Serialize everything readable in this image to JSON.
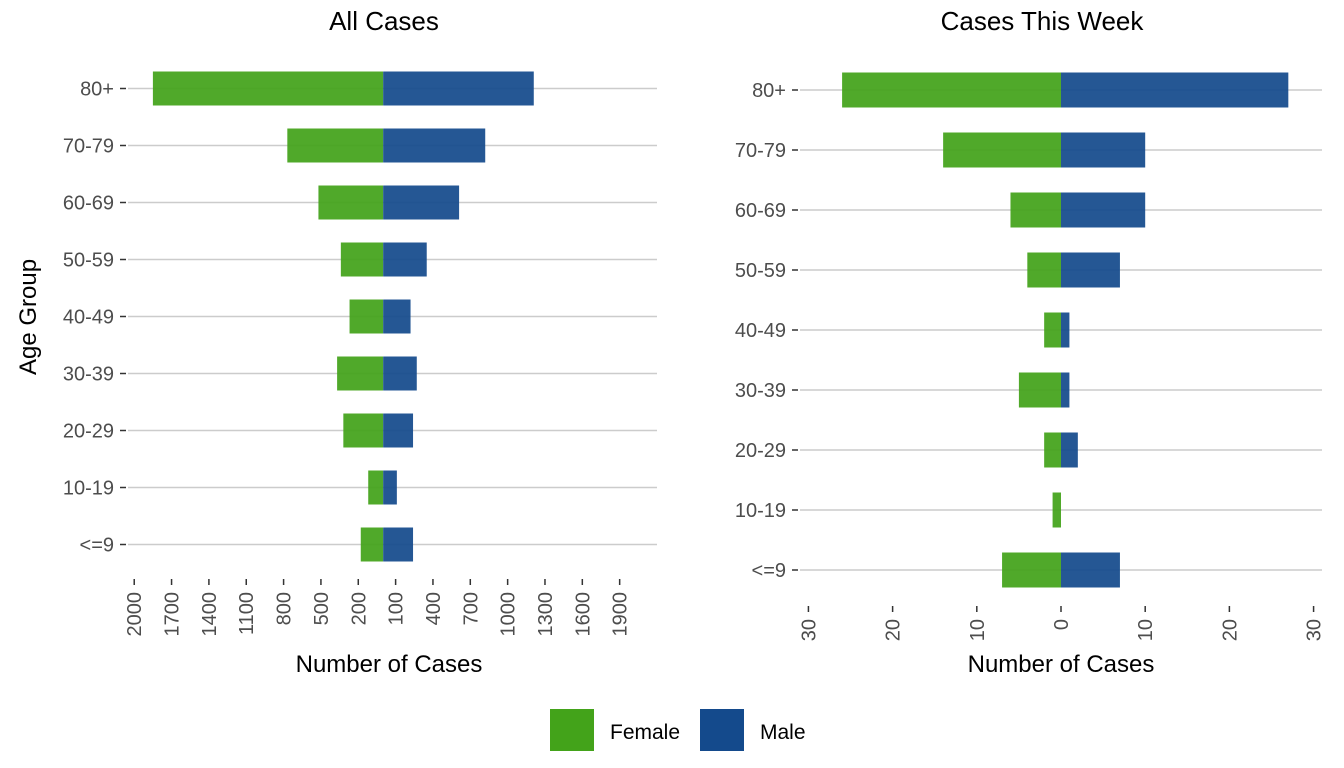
{
  "legend": [
    {
      "label": "Female",
      "color": "#43a31a"
    },
    {
      "label": "Male",
      "color": "#144a8c"
    }
  ],
  "chart_data": [
    {
      "type": "bar",
      "orientation": "horizontal-diverging",
      "title": "All Cases",
      "xlabel": "Number of Cases",
      "ylabel": "Age Group",
      "categories": [
        "80+",
        "70-79",
        "60-69",
        "50-59",
        "40-49",
        "30-39",
        "20-29",
        "10-19",
        "<=9"
      ],
      "series": [
        {
          "name": "Female",
          "color": "#43a31a",
          "values": [
            1850,
            770,
            520,
            340,
            270,
            370,
            320,
            120,
            180
          ]
        },
        {
          "name": "Male",
          "color": "#144a8c",
          "values": [
            1210,
            820,
            610,
            350,
            220,
            270,
            240,
            110,
            240
          ]
        }
      ],
      "xlim": [
        -2050,
        2200
      ],
      "xticks": [
        -2000,
        -1700,
        -1400,
        -1100,
        -800,
        -500,
        -200,
        100,
        400,
        700,
        1000,
        1300,
        1600,
        1900
      ],
      "xtick_labels": [
        "2000",
        "1700",
        "1400",
        "1100",
        "800",
        "500",
        "200",
        "100",
        "400",
        "700",
        "1000",
        "1300",
        "1600",
        "1900"
      ],
      "grid": true
    },
    {
      "type": "bar",
      "orientation": "horizontal-diverging",
      "title": "Cases This Week",
      "xlabel": "Number of Cases",
      "ylabel": "",
      "categories": [
        "80+",
        "70-79",
        "60-69",
        "50-59",
        "40-49",
        "30-39",
        "20-29",
        "10-19",
        "<=9"
      ],
      "series": [
        {
          "name": "Female",
          "color": "#43a31a",
          "values": [
            26,
            14,
            6,
            4,
            2,
            5,
            2,
            1,
            7
          ]
        },
        {
          "name": "Male",
          "color": "#144a8c",
          "values": [
            27,
            10,
            10,
            7,
            1,
            1,
            2,
            0,
            7
          ]
        }
      ],
      "xlim": [
        -31,
        31
      ],
      "xticks": [
        -30,
        -20,
        -10,
        0,
        10,
        20,
        30
      ],
      "xtick_labels": [
        "30",
        "20",
        "10",
        "0",
        "10",
        "20",
        "30"
      ],
      "grid": true
    }
  ]
}
